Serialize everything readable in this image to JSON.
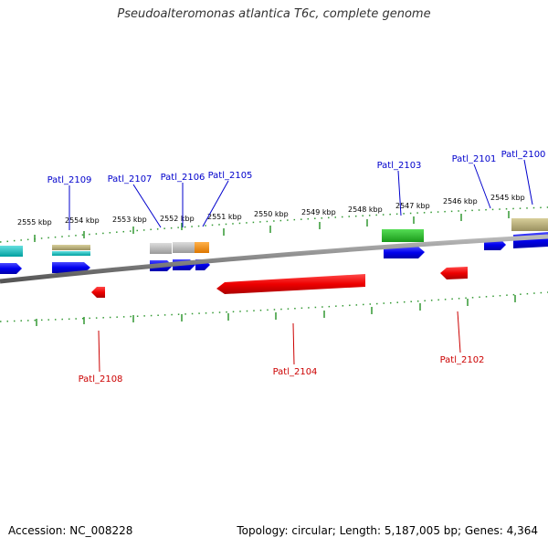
{
  "title": "Pseudoalteromonas atlantica T6c, complete genome",
  "footer": {
    "accession": "Accession: NC_008228",
    "summary": "Topology: circular; Length: 5,187,005 bp; Genes: 4,364"
  },
  "colors": {
    "forward_gene": "#0000ee",
    "reverse_gene": "#ee0000",
    "label_forward": "#0000cc",
    "label_reverse": "#cc0000",
    "tick": "#339933",
    "backbone": "#888888"
  },
  "ticks": [
    "2555 kbp",
    "2554 kbp",
    "2553 kbp",
    "2552 kbp",
    "2551 kbp",
    "2550 kbp",
    "2549 kbp",
    "2548 kbp",
    "2547 kbp",
    "2546 kbp",
    "2545 kbp"
  ],
  "genes_forward": [
    "Patl_2109",
    "Patl_2107",
    "Patl_2106",
    "Patl_2105",
    "Patl_2103",
    "Patl_2101",
    "Patl_2100"
  ],
  "genes_reverse": [
    "Patl_2108",
    "Patl_2104",
    "Patl_2102"
  ]
}
